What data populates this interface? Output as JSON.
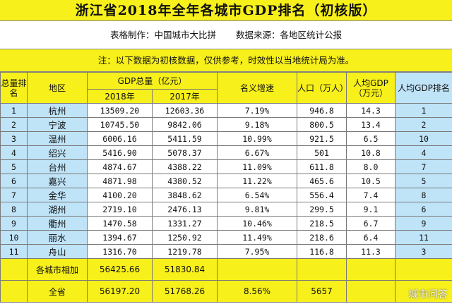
{
  "title": "浙江省2018年全年各城市GDP排名（初核版）",
  "maker_label": "表格制作：中国城市大比拼",
  "source_label": "数据来源：各地区统计公报",
  "note": "注：以下数据为初核数据，仅供参考，时效性以当地统计局为准。",
  "headers": {
    "rank": "总量排名",
    "region": "地区",
    "gdp": "GDP总量（亿元）",
    "y2018": "2018年",
    "y2017": "2017年",
    "growth": "名义增速",
    "pop": "人口（万人）",
    "percap": "人均GDP（万元）",
    "percap_rank": "人均GDP排名"
  },
  "rows": [
    {
      "rank": "1",
      "city": "杭州",
      "gdp2018": "13509.20",
      "gdp2017": "12603.36",
      "growth": "7.19%",
      "pop": "946.8",
      "percap": "14.3",
      "pcrank": "1"
    },
    {
      "rank": "2",
      "city": "宁波",
      "gdp2018": "10745.50",
      "gdp2017": "9842.06",
      "growth": "9.18%",
      "pop": "800.5",
      "percap": "13.4",
      "pcrank": "2"
    },
    {
      "rank": "3",
      "city": "温州",
      "gdp2018": "6006.16",
      "gdp2017": "5411.59",
      "growth": "10.99%",
      "pop": "921.5",
      "percap": "6.5",
      "pcrank": "10"
    },
    {
      "rank": "4",
      "city": "绍兴",
      "gdp2018": "5416.90",
      "gdp2017": "5078.37",
      "growth": "6.67%",
      "pop": "501",
      "percap": "10.8",
      "pcrank": "4"
    },
    {
      "rank": "5",
      "city": "台州",
      "gdp2018": "4874.67",
      "gdp2017": "4388.22",
      "growth": "11.09%",
      "pop": "611.8",
      "percap": "8.0",
      "pcrank": "7"
    },
    {
      "rank": "6",
      "city": "嘉兴",
      "gdp2018": "4871.98",
      "gdp2017": "4380.52",
      "growth": "11.22%",
      "pop": "465.6",
      "percap": "10.5",
      "pcrank": "5"
    },
    {
      "rank": "7",
      "city": "金华",
      "gdp2018": "4100.20",
      "gdp2017": "3848.62",
      "growth": "6.54%",
      "pop": "556.4",
      "percap": "7.4",
      "pcrank": "8"
    },
    {
      "rank": "8",
      "city": "湖州",
      "gdp2018": "2719.10",
      "gdp2017": "2476.13",
      "growth": "9.81%",
      "pop": "299.5",
      "percap": "9.1",
      "pcrank": "6"
    },
    {
      "rank": "9",
      "city": "衢州",
      "gdp2018": "1470.58",
      "gdp2017": "1331.27",
      "growth": "10.46%",
      "pop": "218.5",
      "percap": "6.7",
      "pcrank": "9"
    },
    {
      "rank": "10",
      "city": "丽水",
      "gdp2018": "1394.67",
      "gdp2017": "1250.92",
      "growth": "11.49%",
      "pop": "218.6",
      "percap": "6.4",
      "pcrank": "11"
    },
    {
      "rank": "11",
      "city": "舟山",
      "gdp2018": "1316.70",
      "gdp2017": "1219.78",
      "growth": "7.95%",
      "pop": "116.8",
      "percap": "11.3",
      "pcrank": "3"
    }
  ],
  "sum_row": {
    "label": "各城市相加",
    "gdp2018": "56425.66",
    "gdp2017": "51830.84"
  },
  "total_row": {
    "label": "全省",
    "gdp2018": "56197.20",
    "gdp2017": "51768.26",
    "growth": "8.56%",
    "pop": "5657"
  },
  "watermark": "城市问答",
  "colors": {
    "yellow": "#f7f01a",
    "blue": "#bfe3f7"
  }
}
